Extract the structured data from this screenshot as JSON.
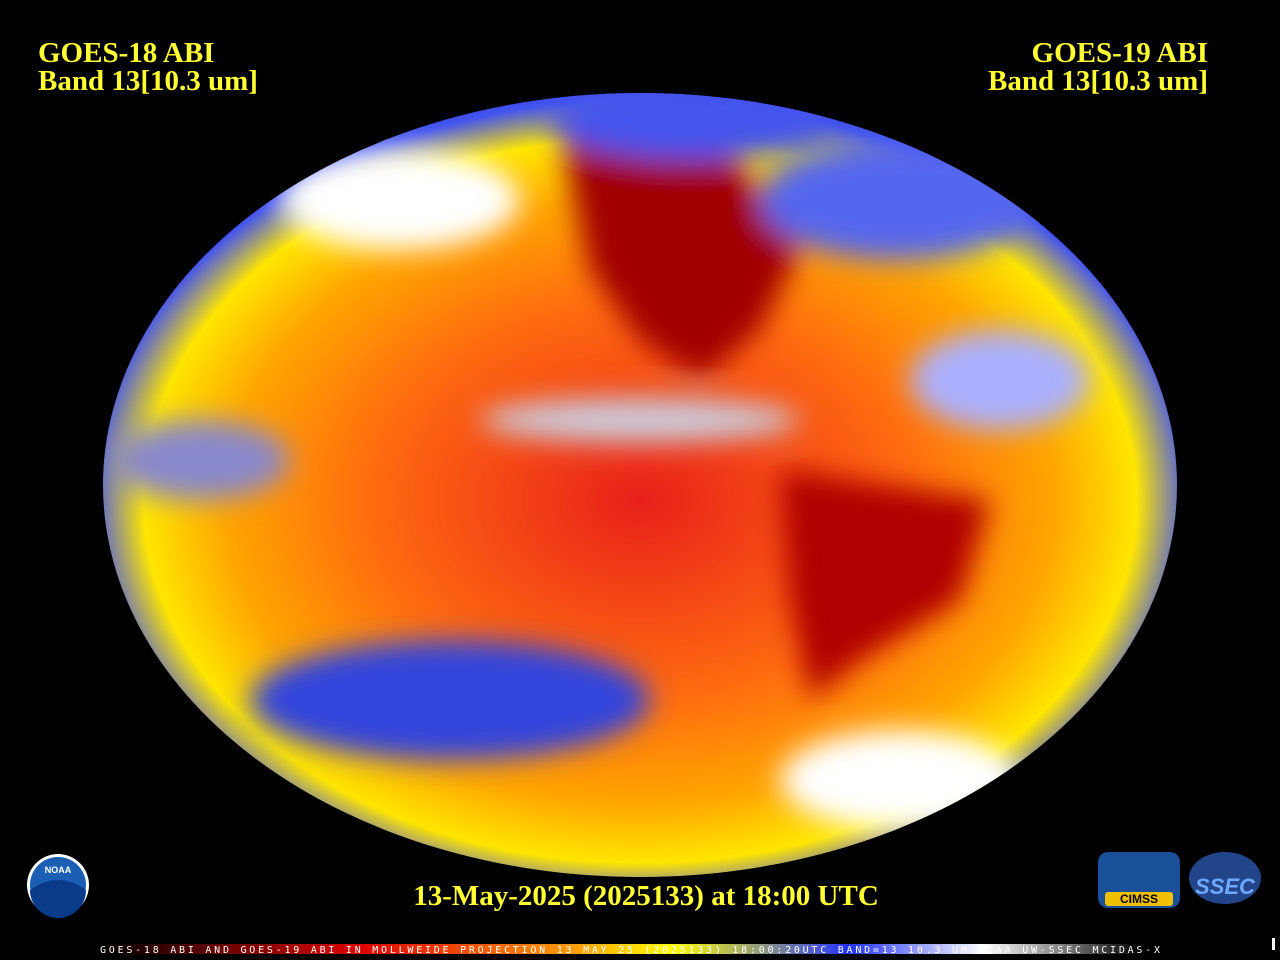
{
  "left_label": {
    "satellite": "GOES-18 ABI",
    "band": "Band 13[10.3 um]"
  },
  "right_label": {
    "satellite": "GOES-19 ABI",
    "band": "Band 13[10.3 um]"
  },
  "timestamp": "13-May-2025 (2025133) at 18:00 UTC",
  "caption": "GOES-18 ABI AND GOES-19 ABI IN MOLLWEIDE PROJECTION 13 MAY 25 (2025133) 18:00:20UTC BAND=13 10.3 UM NOAA UW-SSEC MCIDAS-X",
  "logos": {
    "noaa": "NOAA",
    "cimss": "CIMSS",
    "ssec": "SSEC"
  }
}
